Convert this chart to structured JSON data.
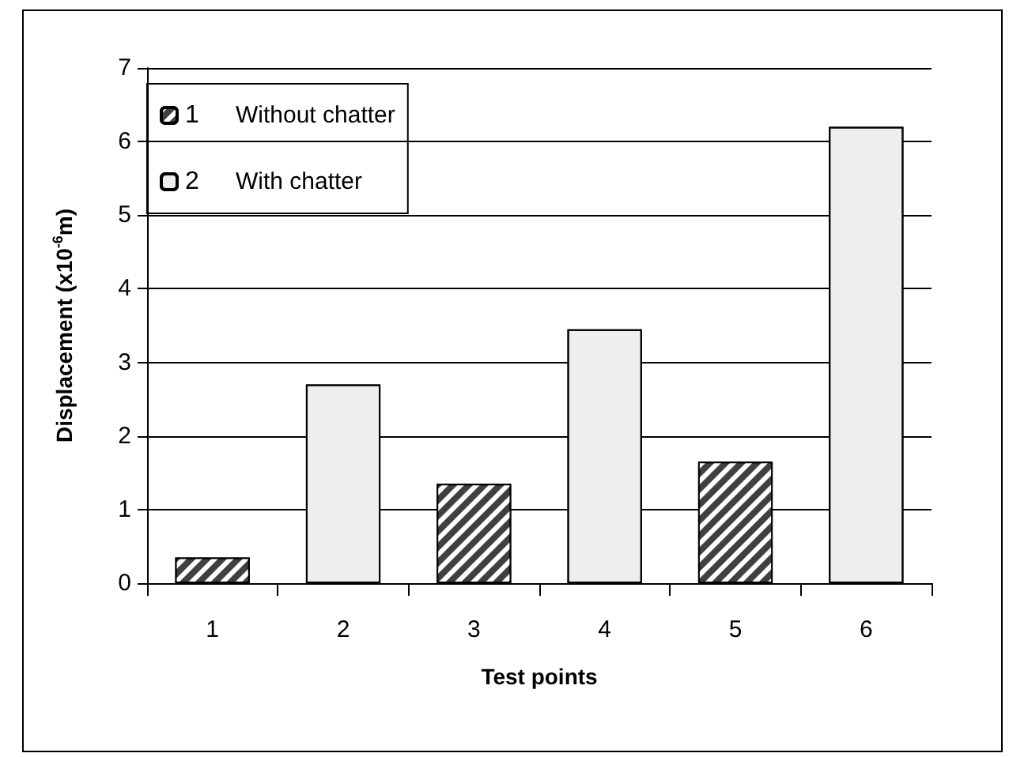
{
  "chart_data": {
    "type": "bar",
    "xlabel": "Test points",
    "ylabel": "Displacement (x10$^{-6}$m)",
    "categories": [
      "1",
      "2",
      "3",
      "4",
      "5",
      "6"
    ],
    "series": [
      {
        "name": "1",
        "color": "#404040",
        "values": [
          0.35,
          null,
          1.35,
          null,
          1.65,
          null
        ]
      },
      {
        "name": "2",
        "color": "#eeeeee",
        "values": [
          null,
          2.7,
          null,
          3.45,
          null,
          6.2
        ]
      }
    ],
    "annotations": [
      "Without chatter",
      "With chatter"
    ],
    "ylim": [
      0,
      7
    ],
    "yticks": [
      0,
      1,
      2,
      3,
      4,
      5,
      6,
      7
    ],
    "grid": "y",
    "legend": "top left"
  }
}
